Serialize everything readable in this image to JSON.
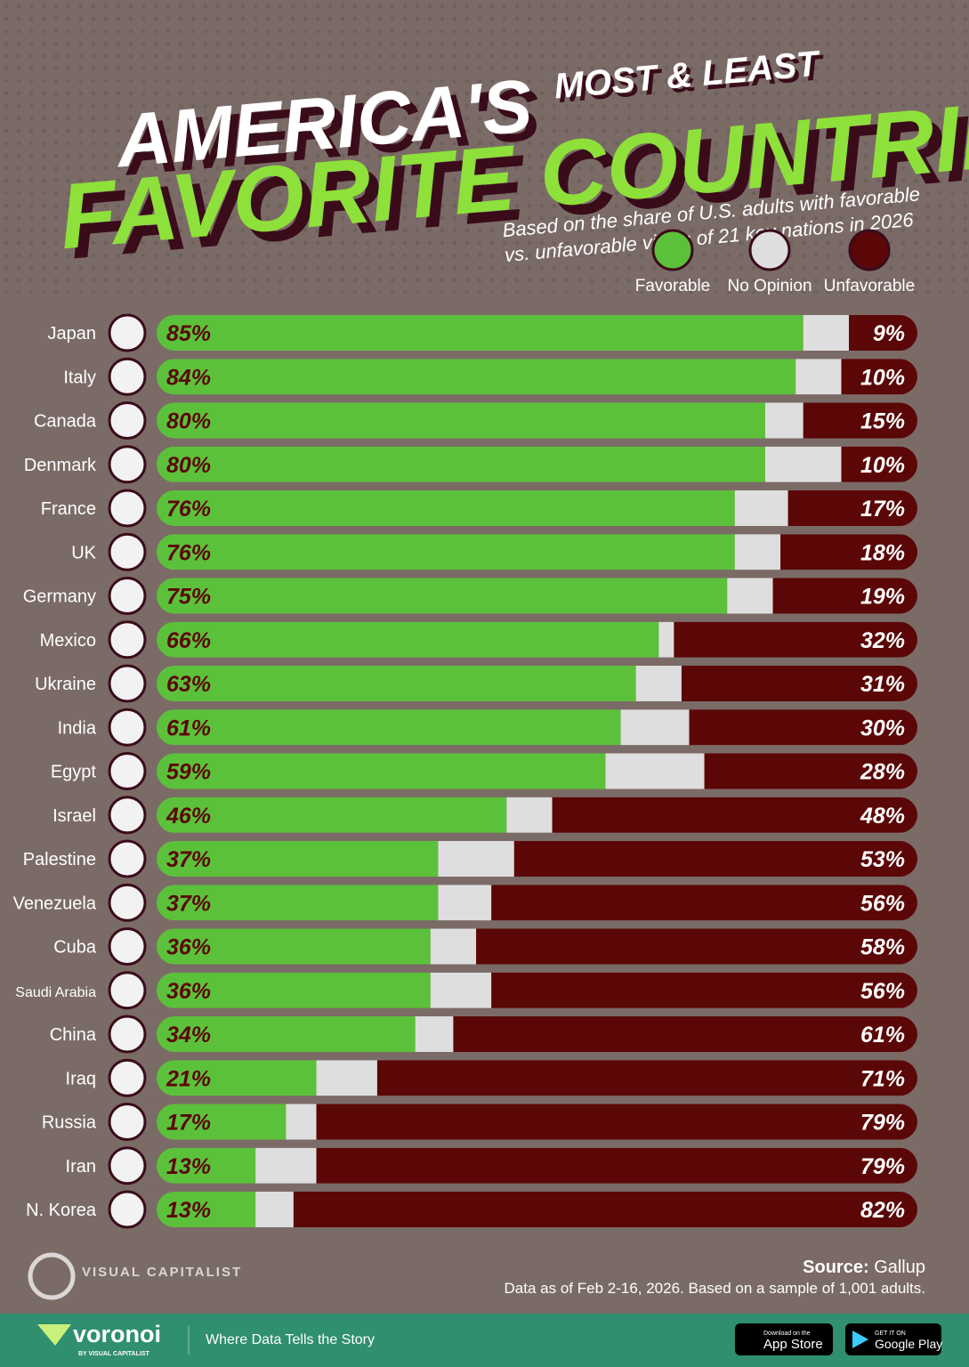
{
  "chart_data": {
    "type": "stacked-bar",
    "title": "AMERICA'S",
    "title_tag": "MOST & LEAST",
    "title_line2": "FAVORITE COUNTRIES",
    "subtitle_lines": [
      "Based on the share of U.S. adults with favorable",
      "vs. unfavorable views of 21 key nations in 2026"
    ],
    "categories": [
      "Japan",
      "Italy",
      "Canada",
      "Denmark",
      "France",
      "UK",
      "Germany",
      "Mexico",
      "Ukraine",
      "India",
      "Egypt",
      "Israel",
      "Palestine",
      "Venezuela",
      "Cuba",
      "Saudi Arabia",
      "China",
      "Iraq",
      "Russia",
      "Iran",
      "N. Korea"
    ],
    "xlim": [
      0,
      100
    ],
    "series": [
      {
        "name": "Favorable",
        "color": "#5cc13a",
        "values": [
          85,
          84,
          80,
          80,
          76,
          76,
          75,
          66,
          63,
          61,
          59,
          46,
          37,
          37,
          36,
          36,
          34,
          21,
          17,
          13,
          13
        ],
        "value_labels": [
          "85%",
          "84%",
          "80%",
          "80%",
          "76%",
          "76%",
          "75%",
          "66%",
          "63%",
          "61%",
          "59%",
          "46%",
          "37%",
          "37%",
          "36%",
          "36%",
          "34%",
          "21%",
          "17%",
          "13%",
          "13%"
        ]
      },
      {
        "name": "No Opinion",
        "color": "#dedede",
        "values": [
          6,
          6,
          5,
          10,
          7,
          6,
          6,
          2,
          6,
          9,
          13,
          6,
          10,
          7,
          6,
          8,
          5,
          8,
          4,
          8,
          5
        ]
      },
      {
        "name": "Unfavorable",
        "color": "#5b0707",
        "values": [
          9,
          10,
          15,
          10,
          17,
          18,
          19,
          32,
          31,
          30,
          28,
          48,
          53,
          56,
          58,
          56,
          61,
          71,
          79,
          79,
          82
        ],
        "value_labels": [
          "9%",
          "10%",
          "15%",
          "10%",
          "17%",
          "18%",
          "19%",
          "32%",
          "31%",
          "30%",
          "28%",
          "48%",
          "53%",
          "56%",
          "58%",
          "56%",
          "61%",
          "71%",
          "79%",
          "79%",
          "82%"
        ]
      }
    ],
    "source_label": "Source:",
    "source": "Gallup",
    "note": "Data as of Feb 2-16, 2026. Based on a sample of 1,001 adults."
  },
  "branding": {
    "publisher": "VISUAL CAPITALIST",
    "footer_brand": "voronoi",
    "footer_by": "BY VISUAL CAPITALIST",
    "tagline": "Where Data Tells the Story",
    "app_store_small": "Download on the",
    "app_store": "App Store",
    "google_small": "GET IT ON",
    "google": "Google Play"
  }
}
